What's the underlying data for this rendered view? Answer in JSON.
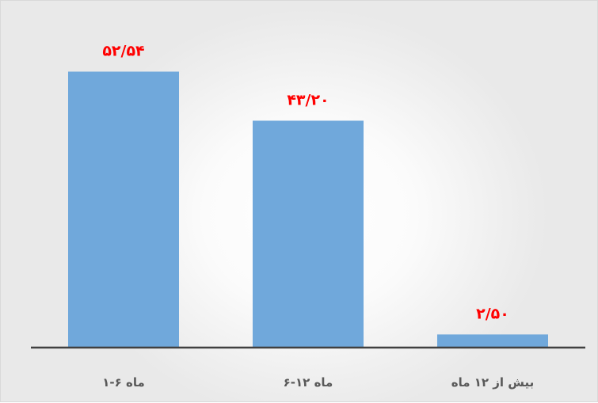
{
  "chart_data": {
    "type": "bar",
    "categories": [
      "۱-۶ ماه",
      "۶-۱۲ ماه",
      "بیش از ۱۲ ماه"
    ],
    "values": [
      52.54,
      43.2,
      2.5
    ],
    "data_labels": [
      "۵۲/۵۴",
      "۴۳/۲۰",
      "۲/۵۰"
    ],
    "bar_color": "#70a8db",
    "label_color": "#ff0000",
    "axis_color": "#404040",
    "ylim": [
      0,
      60
    ],
    "grid": false,
    "legend": "none"
  }
}
